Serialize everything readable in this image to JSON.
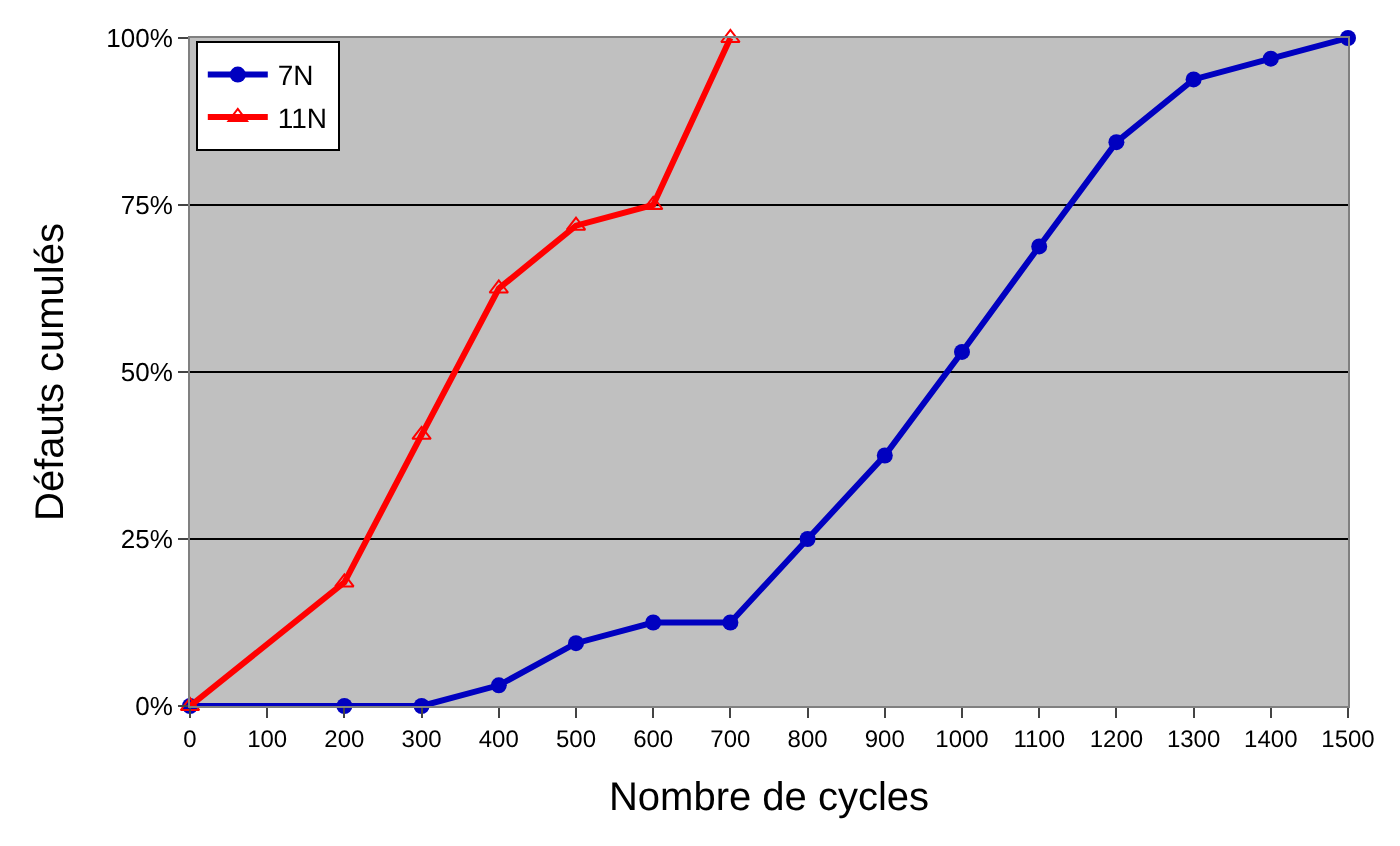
{
  "chart_data": {
    "type": "line",
    "xlabel": "Nombre de cycles",
    "ylabel": "Défauts cumulés",
    "xlim": [
      0,
      1500
    ],
    "xticks": [
      0,
      100,
      200,
      300,
      400,
      500,
      600,
      700,
      800,
      900,
      1000,
      1100,
      1200,
      1300,
      1400,
      1500
    ],
    "ylim": [
      0,
      100
    ],
    "yticks": [
      {
        "value": 0,
        "label": "0%"
      },
      {
        "value": 25,
        "label": "25%"
      },
      {
        "value": 50,
        "label": "50%"
      },
      {
        "value": 75,
        "label": "75%"
      },
      {
        "value": 100,
        "label": "100%"
      }
    ],
    "grid": "y",
    "legend": "top left",
    "line_style": "solid",
    "series": [
      {
        "name": "7N",
        "color": "#0000c0",
        "marker": "circle",
        "x": [
          0,
          200,
          300,
          400,
          500,
          600,
          700,
          800,
          900,
          1000,
          1100,
          1200,
          1300,
          1400,
          1500
        ],
        "values": [
          0,
          0,
          0,
          3.1,
          9.4,
          12.5,
          12.5,
          25,
          37.5,
          53,
          68.8,
          84.4,
          93.8,
          96.9,
          100
        ]
      },
      {
        "name": "11N",
        "color": "#ff0000",
        "marker": "triangle",
        "x": [
          0,
          200,
          300,
          400,
          500,
          600,
          700
        ],
        "values": [
          0,
          18.5,
          40.6,
          62.5,
          71.9,
          75,
          100
        ]
      }
    ]
  }
}
